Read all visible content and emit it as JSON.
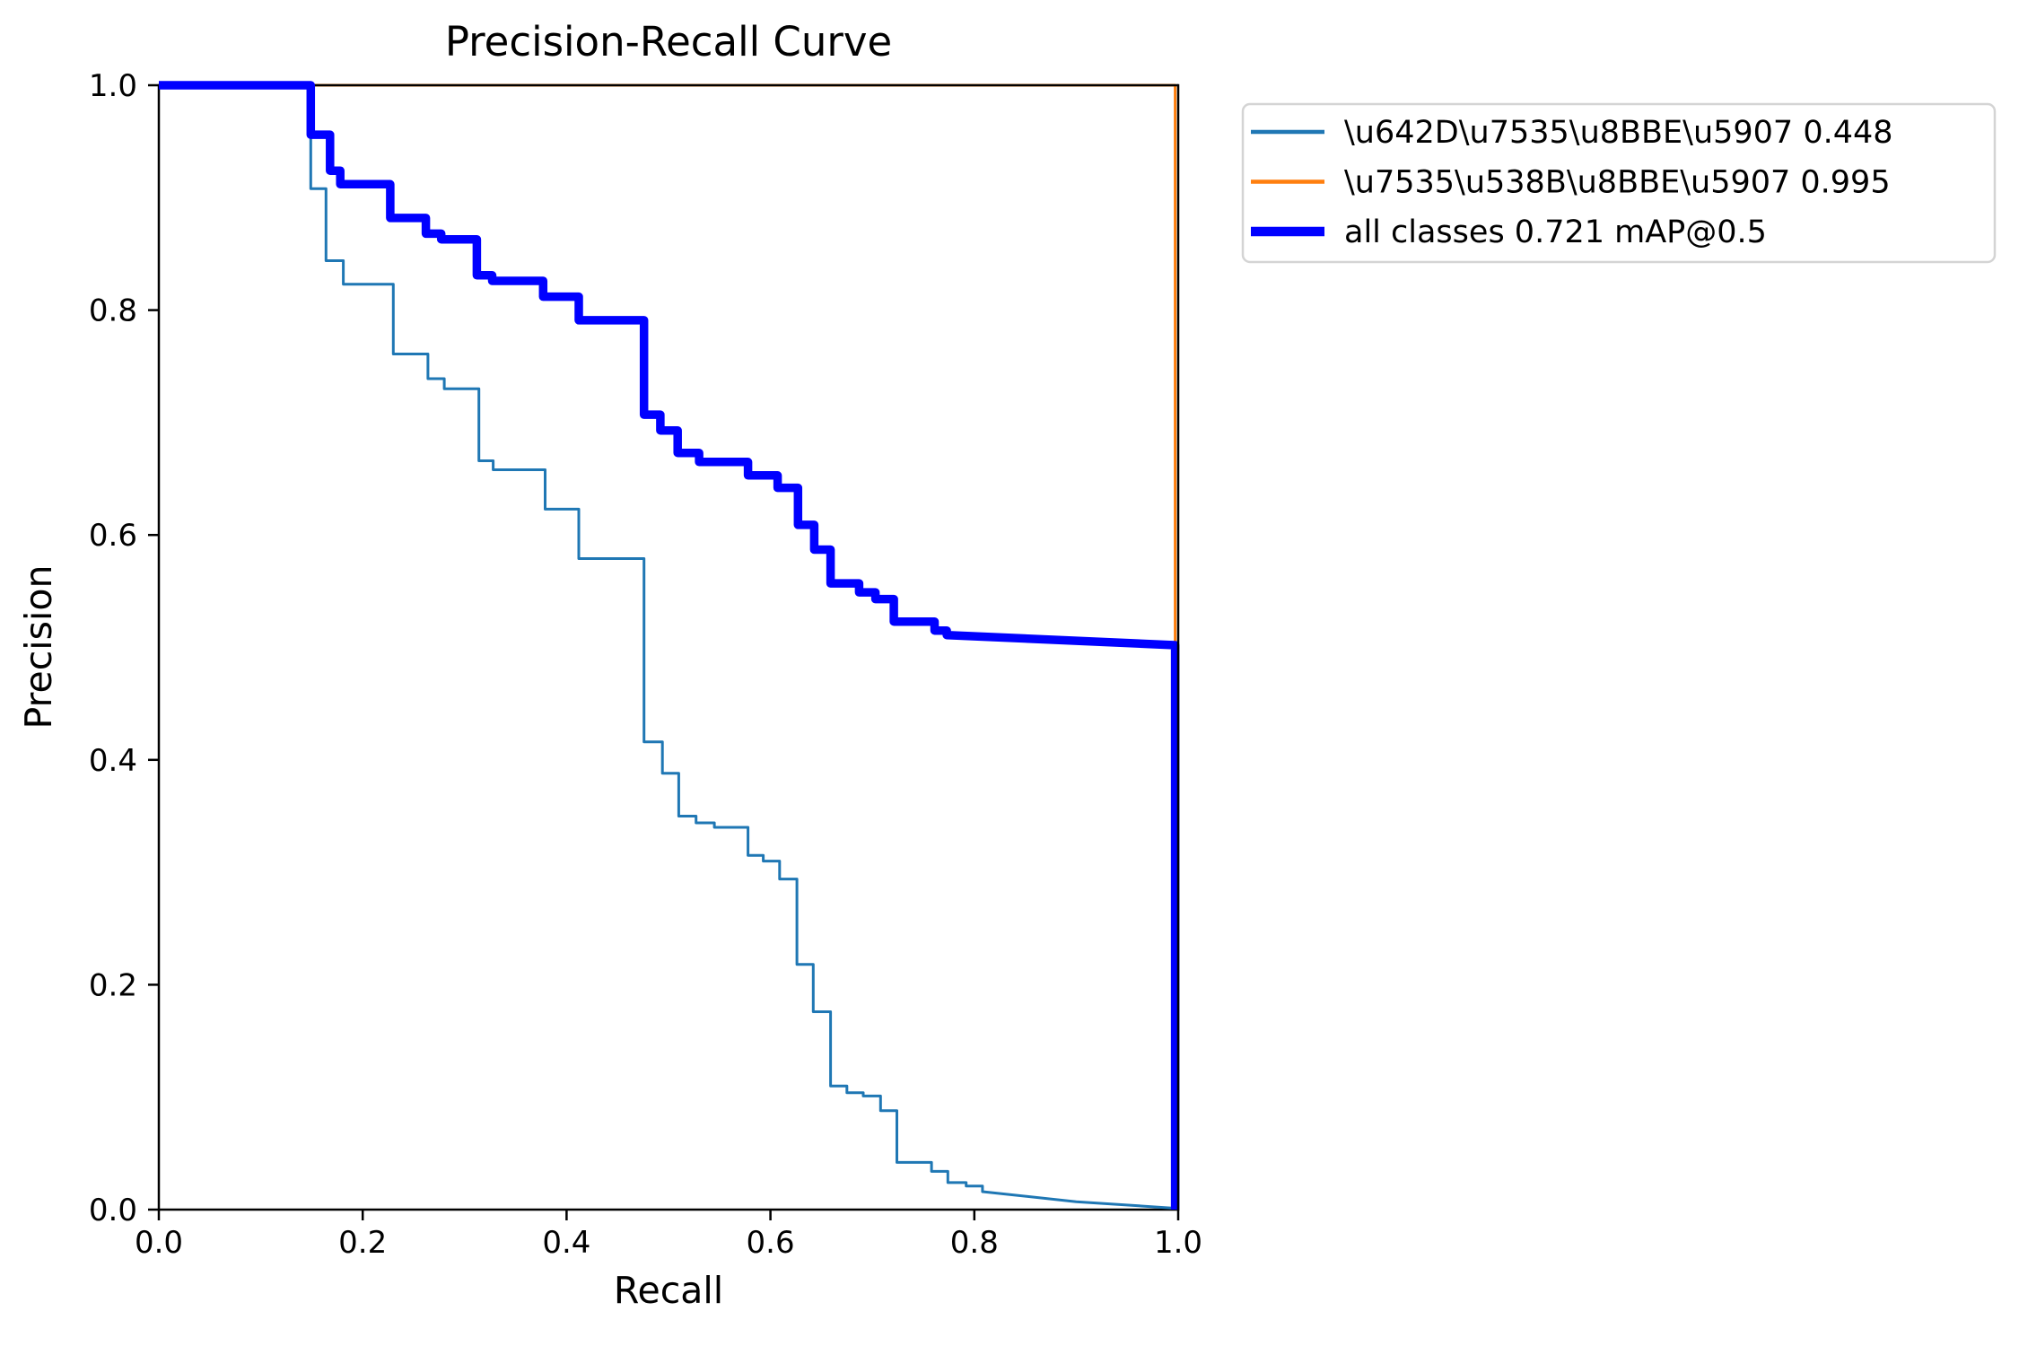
{
  "chart_data": {
    "type": "line",
    "title": "Precision-Recall Curve",
    "xlabel": "Recall",
    "ylabel": "Precision",
    "xlim": [
      0.0,
      1.0
    ],
    "ylim": [
      0.0,
      1.0
    ],
    "grid": false,
    "x_ticks": [
      {
        "value": 0.0,
        "label": "0.0"
      },
      {
        "value": 0.2,
        "label": "0.2"
      },
      {
        "value": 0.4,
        "label": "0.4"
      },
      {
        "value": 0.6,
        "label": "0.6"
      },
      {
        "value": 0.8,
        "label": "0.8"
      },
      {
        "value": 1.0,
        "label": "1.0"
      }
    ],
    "y_ticks": [
      {
        "value": 0.0,
        "label": "0.0"
      },
      {
        "value": 0.2,
        "label": "0.2"
      },
      {
        "value": 0.4,
        "label": "0.4"
      },
      {
        "value": 0.6,
        "label": "0.6"
      },
      {
        "value": 0.8,
        "label": "0.8"
      },
      {
        "value": 1.0,
        "label": "1.0"
      }
    ],
    "colors": {
      "class1": "#1f77b4",
      "class2": "#ff7f0e",
      "all_classes": "#0000ff",
      "spine": "#000000",
      "legend_border": "#d4d4d4"
    },
    "legend": {
      "position": "outside upper right",
      "entries": [
        {
          "label": "\\u642D\\u7535\\u8BBE\\u5907 0.448",
          "color": "#1f77b4",
          "sample_width": 4.5
        },
        {
          "label": "\\u7535\\u538B\\u8BBE\\u5907 0.995",
          "color": "#ff7f0e",
          "sample_width": 4.5
        },
        {
          "label": "all classes 0.721 mAP@0.5",
          "color": "#0000ff",
          "sample_width": 10.5
        }
      ]
    },
    "series": [
      {
        "name": "\\u7535\\u538B\\u8BBE\\u5907 0.995",
        "color": "#ff7f0e",
        "width": 3,
        "layer": "under",
        "points": [
          [
            0.0,
            1.0
          ],
          [
            0.997,
            1.0
          ],
          [
            0.997,
            0.0
          ]
        ]
      },
      {
        "name": "\\u642D\\u7535\\u8BBE\\u5907 0.448",
        "color": "#1f77b4",
        "width": 3,
        "layer": "over",
        "points": [
          [
            0.0,
            1.0
          ],
          [
            0.149,
            1.0
          ],
          [
            0.149,
            0.908
          ],
          [
            0.164,
            0.908
          ],
          [
            0.164,
            0.844
          ],
          [
            0.181,
            0.844
          ],
          [
            0.181,
            0.823
          ],
          [
            0.23,
            0.823
          ],
          [
            0.23,
            0.761
          ],
          [
            0.264,
            0.761
          ],
          [
            0.264,
            0.739
          ],
          [
            0.28,
            0.739
          ],
          [
            0.28,
            0.73
          ],
          [
            0.314,
            0.73
          ],
          [
            0.314,
            0.666
          ],
          [
            0.328,
            0.666
          ],
          [
            0.328,
            0.658
          ],
          [
            0.379,
            0.658
          ],
          [
            0.379,
            0.623
          ],
          [
            0.412,
            0.623
          ],
          [
            0.412,
            0.579
          ],
          [
            0.476,
            0.579
          ],
          [
            0.476,
            0.416
          ],
          [
            0.494,
            0.416
          ],
          [
            0.494,
            0.388
          ],
          [
            0.51,
            0.388
          ],
          [
            0.51,
            0.35
          ],
          [
            0.527,
            0.35
          ],
          [
            0.527,
            0.344
          ],
          [
            0.545,
            0.344
          ],
          [
            0.545,
            0.34
          ],
          [
            0.578,
            0.34
          ],
          [
            0.578,
            0.315
          ],
          [
            0.593,
            0.315
          ],
          [
            0.593,
            0.31
          ],
          [
            0.609,
            0.31
          ],
          [
            0.609,
            0.294
          ],
          [
            0.626,
            0.294
          ],
          [
            0.626,
            0.218
          ],
          [
            0.642,
            0.218
          ],
          [
            0.642,
            0.176
          ],
          [
            0.659,
            0.176
          ],
          [
            0.659,
            0.11
          ],
          [
            0.675,
            0.11
          ],
          [
            0.675,
            0.104
          ],
          [
            0.691,
            0.104
          ],
          [
            0.691,
            0.101
          ],
          [
            0.708,
            0.101
          ],
          [
            0.708,
            0.088
          ],
          [
            0.724,
            0.088
          ],
          [
            0.724,
            0.042
          ],
          [
            0.758,
            0.042
          ],
          [
            0.758,
            0.034
          ],
          [
            0.774,
            0.034
          ],
          [
            0.774,
            0.024
          ],
          [
            0.792,
            0.024
          ],
          [
            0.792,
            0.021
          ],
          [
            0.808,
            0.021
          ],
          [
            0.808,
            0.016
          ],
          [
            0.9,
            0.007
          ],
          [
            1.0,
            0.001
          ]
        ]
      },
      {
        "name": "all classes 0.721 mAP@0.5",
        "color": "#0000ff",
        "width": 9.5,
        "layer": "over",
        "points": [
          [
            0.0,
            1.0
          ],
          [
            0.149,
            1.0
          ],
          [
            0.149,
            0.956
          ],
          [
            0.168,
            0.956
          ],
          [
            0.168,
            0.924
          ],
          [
            0.178,
            0.924
          ],
          [
            0.178,
            0.912
          ],
          [
            0.227,
            0.912
          ],
          [
            0.227,
            0.882
          ],
          [
            0.262,
            0.882
          ],
          [
            0.262,
            0.868
          ],
          [
            0.277,
            0.868
          ],
          [
            0.277,
            0.863
          ],
          [
            0.312,
            0.863
          ],
          [
            0.312,
            0.831
          ],
          [
            0.327,
            0.831
          ],
          [
            0.327,
            0.826
          ],
          [
            0.377,
            0.826
          ],
          [
            0.377,
            0.812
          ],
          [
            0.412,
            0.812
          ],
          [
            0.412,
            0.791
          ],
          [
            0.476,
            0.791
          ],
          [
            0.476,
            0.707
          ],
          [
            0.492,
            0.707
          ],
          [
            0.492,
            0.693
          ],
          [
            0.509,
            0.693
          ],
          [
            0.509,
            0.673
          ],
          [
            0.53,
            0.673
          ],
          [
            0.53,
            0.665
          ],
          [
            0.578,
            0.665
          ],
          [
            0.578,
            0.653
          ],
          [
            0.607,
            0.653
          ],
          [
            0.607,
            0.642
          ],
          [
            0.627,
            0.642
          ],
          [
            0.627,
            0.609
          ],
          [
            0.643,
            0.609
          ],
          [
            0.643,
            0.587
          ],
          [
            0.659,
            0.587
          ],
          [
            0.659,
            0.557
          ],
          [
            0.687,
            0.557
          ],
          [
            0.687,
            0.549
          ],
          [
            0.703,
            0.549
          ],
          [
            0.703,
            0.543
          ],
          [
            0.721,
            0.543
          ],
          [
            0.721,
            0.523
          ],
          [
            0.761,
            0.523
          ],
          [
            0.761,
            0.515
          ],
          [
            0.773,
            0.515
          ],
          [
            0.773,
            0.511
          ],
          [
            0.997,
            0.502
          ],
          [
            0.997,
            0.0
          ]
        ]
      }
    ]
  }
}
